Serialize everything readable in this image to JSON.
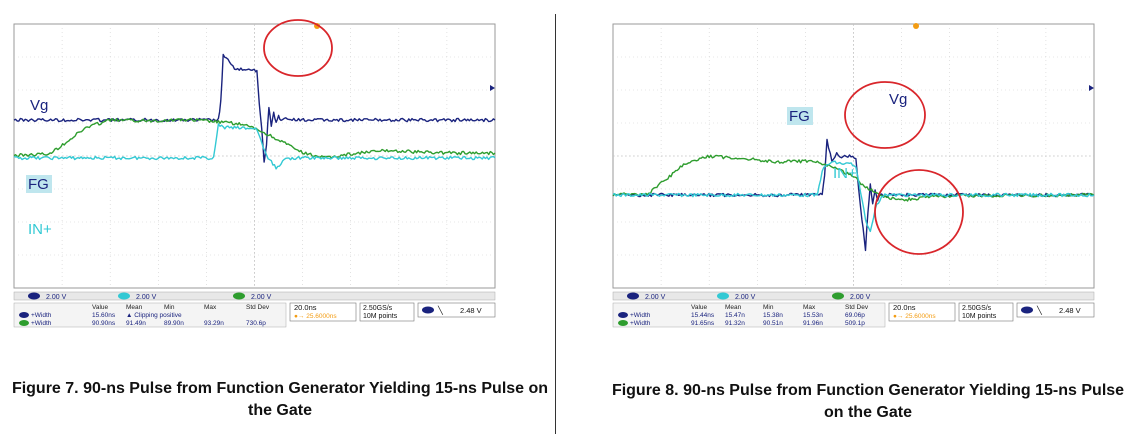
{
  "chart_data": [
    {
      "type": "line",
      "title": "Figure 7. 90-ns Pulse from Function Generator Yielding 15-ns Pulse on the Gate",
      "x_unit": "ns",
      "xlim": [
        -75,
        125
      ],
      "y_unit": "V",
      "series": [
        {
          "name": "Vg",
          "color": "#1a237e",
          "x": [
            -75,
            10,
            11,
            12,
            14,
            16,
            18,
            20,
            22,
            24,
            25,
            26,
            27,
            28,
            29,
            30,
            31,
            32,
            33,
            34,
            35,
            36,
            38,
            40,
            125
          ],
          "y": [
            0,
            0,
            1.1,
            3.9,
            3.6,
            3.2,
            3.1,
            3.05,
            3.0,
            3.0,
            3.0,
            2.95,
            1.0,
            -0.5,
            -2.5,
            -1.5,
            0.8,
            -0.3,
            0.5,
            -0.2,
            0.2,
            -0.1,
            0.1,
            0,
            0
          ]
        },
        {
          "name": "FG",
          "color": "#2e9d2e",
          "x": [
            -75,
            -60,
            -45,
            -35,
            -20,
            -5,
            5,
            10,
            18,
            25,
            35,
            45,
            55,
            65,
            80,
            95,
            110,
            125
          ],
          "y": [
            -2.15,
            -2.05,
            -0.45,
            0.0,
            -0.05,
            0.02,
            -0.05,
            -0.12,
            -0.22,
            -0.5,
            -1.2,
            -2.0,
            -2.3,
            -2.05,
            -1.85,
            -1.95,
            -2.0,
            -2.0
          ]
        },
        {
          "name": "IN+",
          "color": "#33c9d4",
          "x": [
            -75,
            8,
            10,
            12,
            22,
            24,
            26,
            30,
            34,
            38,
            42,
            125
          ],
          "y": [
            -2.3,
            -2.3,
            -0.3,
            -0.45,
            -0.5,
            -0.5,
            -0.55,
            -2.2,
            -2.9,
            -2.35,
            -2.3,
            -2.3
          ]
        }
      ],
      "labels": [
        "Vg",
        "FG",
        "IN+"
      ],
      "channel_scale": [
        "2.00 V",
        "2.00 V",
        "2.00 V"
      ],
      "measurements": {
        "columns": [
          "Value",
          "Mean",
          "Min",
          "Max",
          "Std Dev"
        ],
        "rows": [
          {
            "name": "+Width",
            "color": "#1a237e",
            "values": [
              "15.60ns",
              "▲ Clipping positive",
              "",
              "",
              ""
            ]
          },
          {
            "name": "+Width",
            "color": "#2e9d2e",
            "values": [
              "90.90ns",
              "91.49n",
              "89.90n",
              "93.29n",
              "730.6p"
            ]
          }
        ]
      },
      "timebase": "20.0ns",
      "trigger_pos": "25.6000ns",
      "sample_rate": "2.50GS/s",
      "record_length": "10M points",
      "trigger_level": "2.48 V"
    },
    {
      "type": "line",
      "title": "Figure 8. 90-ns Pulse from Function Generator Yielding 15-ns Pulse on the Gate",
      "x_unit": "ns",
      "xlim": [
        -75,
        125
      ],
      "y_unit": "V",
      "series": [
        {
          "name": "Vg",
          "color": "#1a237e",
          "x": [
            -75,
            12,
            13,
            14,
            16,
            18,
            20,
            22,
            24,
            26,
            27,
            28,
            29,
            30,
            31,
            32,
            33,
            34,
            35,
            36,
            38,
            40,
            125
          ],
          "y": [
            0,
            0,
            1.2,
            3.3,
            2.0,
            2.5,
            2.2,
            2.4,
            2.3,
            2.2,
            0.5,
            -0.8,
            -2.0,
            -3.3,
            -1.0,
            0.6,
            -0.5,
            0.3,
            -0.3,
            0.1,
            -0.1,
            0,
            0
          ]
        },
        {
          "name": "FG",
          "color": "#2e9d2e",
          "x": [
            -75,
            -60,
            -45,
            -35,
            -20,
            -5,
            5,
            10,
            18,
            25,
            30,
            35,
            40,
            45,
            50,
            55,
            65,
            125
          ],
          "y": [
            0,
            0.1,
            1.9,
            2.35,
            2.2,
            2.0,
            2.05,
            1.95,
            1.6,
            1.1,
            0.5,
            0.1,
            -0.2,
            -0.3,
            -0.25,
            -0.15,
            -0.05,
            0
          ]
        },
        {
          "name": "IN+",
          "color": "#33c9d4",
          "x": [
            -75,
            10,
            12,
            14,
            16,
            20,
            24,
            26,
            28,
            30,
            32,
            34,
            36,
            38,
            40,
            125
          ],
          "y": [
            0,
            0,
            1.5,
            1.8,
            2.0,
            1.9,
            1.9,
            1.6,
            0.2,
            -1.5,
            -2.3,
            -0.8,
            -0.3,
            0.1,
            0,
            0
          ]
        }
      ],
      "labels": [
        "Vg",
        "FG",
        "IN+"
      ],
      "channel_scale": [
        "2.00 V",
        "2.00 V",
        "2.00 V"
      ],
      "measurements": {
        "columns": [
          "Value",
          "Mean",
          "Min",
          "Max",
          "Std Dev"
        ],
        "rows": [
          {
            "name": "+Width",
            "color": "#1a237e",
            "values": [
              "15.44ns",
              "15.47n",
              "15.38n",
              "15.53n",
              "69.06p"
            ]
          },
          {
            "name": "+Width",
            "color": "#2e9d2e",
            "values": [
              "91.65ns",
              "91.32n",
              "90.51n",
              "91.96n",
              "509.1p"
            ]
          }
        ]
      },
      "timebase": "20.0ns",
      "trigger_pos": "25.6000ns",
      "sample_rate": "2.50GS/s",
      "record_length": "10M points",
      "trigger_level": "2.48 V"
    }
  ]
}
